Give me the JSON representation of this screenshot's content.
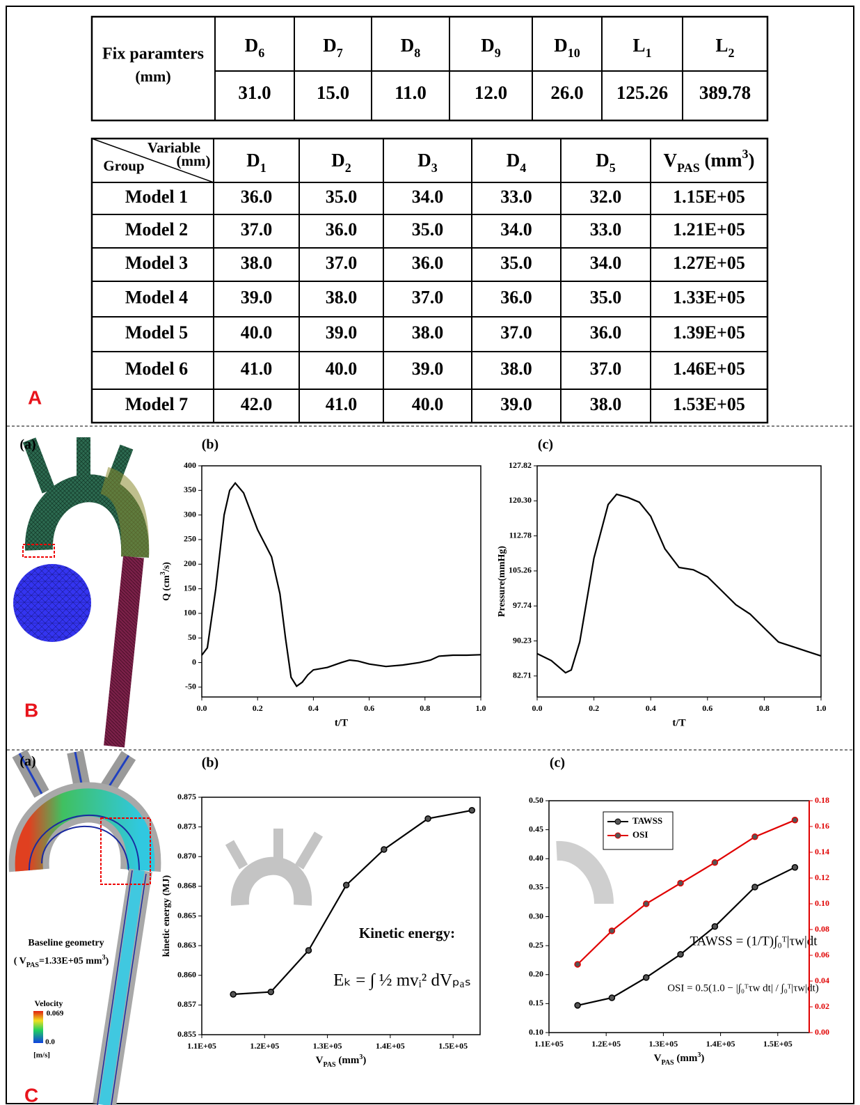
{
  "panel_labels": [
    "A",
    "B",
    "C"
  ],
  "fix_table": {
    "row_header": [
      "Fix paramters",
      "(mm)"
    ],
    "columns": [
      [
        {
          "text": "D"
        },
        {
          "text": "6",
          "sub": true
        }
      ],
      [
        {
          "text": "D"
        },
        {
          "text": "7",
          "sub": true
        }
      ],
      [
        {
          "text": "D"
        },
        {
          "text": "8",
          "sub": true
        }
      ],
      [
        {
          "text": "D"
        },
        {
          "text": "9",
          "sub": true
        }
      ],
      [
        {
          "text": "D"
        },
        {
          "text": "10",
          "sub": true
        }
      ],
      [
        {
          "text": "L"
        },
        {
          "text": "1",
          "sub": true
        }
      ],
      [
        {
          "text": "L"
        },
        {
          "text": "2",
          "sub": true
        }
      ]
    ],
    "values": [
      "31.0",
      "15.0",
      "11.0",
      "12.0",
      "26.0",
      "125.26",
      "389.78"
    ]
  },
  "variable_table": {
    "corner_top": "Variable",
    "corner_unit": "(mm)",
    "corner_bottom": "Group",
    "columns": [
      [
        {
          "text": "D"
        },
        {
          "text": "1",
          "sub": true
        }
      ],
      [
        {
          "text": "D"
        },
        {
          "text": "2",
          "sub": true
        }
      ],
      [
        {
          "text": "D"
        },
        {
          "text": "3",
          "sub": true
        }
      ],
      [
        {
          "text": "D"
        },
        {
          "text": "4",
          "sub": true
        }
      ],
      [
        {
          "text": "D"
        },
        {
          "text": "5",
          "sub": true
        }
      ],
      [
        {
          "text": "V"
        },
        {
          "text": "PAS",
          "sub": true
        },
        {
          "text": " (mm"
        },
        {
          "text": "3",
          "sup": true
        },
        {
          "text": ")"
        }
      ]
    ],
    "rows": [
      {
        "group": "Model 1",
        "values": [
          "36.0",
          "35.0",
          "34.0",
          "33.0",
          "32.0",
          "1.15E+05"
        ]
      },
      {
        "group": "Model 2",
        "values": [
          "37.0",
          "36.0",
          "35.0",
          "34.0",
          "33.0",
          "1.21E+05"
        ]
      },
      {
        "group": "Model 3",
        "values": [
          "38.0",
          "37.0",
          "36.0",
          "35.0",
          "34.0",
          "1.27E+05"
        ]
      },
      {
        "group": "Model 4",
        "values": [
          "39.0",
          "38.0",
          "37.0",
          "36.0",
          "35.0",
          "1.33E+05"
        ]
      },
      {
        "group": "Model 5",
        "values": [
          "40.0",
          "39.0",
          "38.0",
          "37.0",
          "36.0",
          "1.39E+05"
        ]
      },
      {
        "group": "Model 6",
        "values": [
          "41.0",
          "40.0",
          "39.0",
          "38.0",
          "37.0",
          "1.46E+05"
        ]
      },
      {
        "group": "Model 7",
        "values": [
          "42.0",
          "41.0",
          "40.0",
          "39.0",
          "38.0",
          "1.53E+05"
        ]
      }
    ]
  },
  "panel_B": {
    "sublabel": "(a)"
  },
  "panel_C": {
    "sublabel": "(a)",
    "baseline_label": "Baseline geometry",
    "baseline_volume": [
      {
        "text": "( V"
      },
      {
        "text": "PAS",
        "sub": true
      },
      {
        "text": "=1.33E+05 mm"
      },
      {
        "text": "3",
        "sup": true
      },
      {
        "text": ")"
      }
    ],
    "colorbar": {
      "title": "Velocity",
      "max": "0.069",
      "min": "0.0",
      "unit": "[m/s]"
    },
    "ke_title": "Kinetic energy:",
    "ke_formula": "Eₖ = ∫ ½ mvᵢ² dVₚₐₛ",
    "tawss_formula": "TAWSS = (1/T)∫₀ᵀ|τw|dt",
    "osi_formula": "OSI = 0.5(1.0 − |∫₀ᵀτw dt| / ∫₀ᵀ|τw|dt)"
  },
  "chart_data": [
    {
      "type": "line",
      "label": "(b)",
      "x_label": "t/T",
      "y_label": [
        {
          "text": "Q (cm"
        },
        {
          "text": "3",
          "sup": true
        },
        {
          "text": "/s)"
        }
      ],
      "x": [
        0,
        0.02,
        0.05,
        0.08,
        0.1,
        0.12,
        0.15,
        0.2,
        0.25,
        0.28,
        0.3,
        0.32,
        0.34,
        0.36,
        0.38,
        0.4,
        0.45,
        0.5,
        0.53,
        0.56,
        0.6,
        0.66,
        0.72,
        0.78,
        0.82,
        0.85,
        0.9,
        0.95,
        1.0
      ],
      "series": [
        {
          "color": "#000000",
          "values": [
            15,
            30,
            150,
            300,
            350,
            365,
            345,
            270,
            215,
            140,
            50,
            -30,
            -48,
            -40,
            -25,
            -15,
            -10,
            0,
            5,
            3,
            -3,
            -8,
            -5,
            0,
            5,
            13,
            15,
            15,
            16
          ]
        }
      ],
      "xlim": [
        0,
        1
      ],
      "xticks": [
        {
          "value": 0,
          "label": "0.0"
        },
        0.2,
        0.4,
        0.6,
        0.8,
        {
          "value": 1,
          "label": "1.0"
        }
      ],
      "ylim": [
        -70,
        400
      ],
      "yticks": [
        -50,
        0,
        50,
        100,
        150,
        200,
        250,
        300,
        350,
        400
      ],
      "markers": false
    },
    {
      "type": "line",
      "label": "(c)",
      "x_label": "t/T",
      "y_label": "Pressure(mmHg)",
      "x": [
        0,
        0.05,
        0.1,
        0.12,
        0.15,
        0.2,
        0.25,
        0.28,
        0.32,
        0.36,
        0.4,
        0.45,
        0.5,
        0.55,
        0.6,
        0.65,
        0.7,
        0.75,
        0.8,
        0.85,
        0.9,
        0.95,
        1.0
      ],
      "series": [
        {
          "color": "#000000",
          "values": [
            87.5,
            86,
            83.4,
            84,
            90,
            108,
            119.5,
            121.7,
            121,
            120,
            117,
            110,
            106,
            105.5,
            104,
            101,
            98,
            96,
            93,
            90,
            89,
            88,
            87
          ]
        }
      ],
      "xlim": [
        0,
        1
      ],
      "xticks": [
        {
          "value": 0,
          "label": "0.0"
        },
        0.2,
        0.4,
        0.6,
        0.8,
        {
          "value": 1,
          "label": "1.0"
        }
      ],
      "ylim": [
        78.2,
        127.82
      ],
      "yticks": [
        82.71,
        90.23,
        97.74,
        105.26,
        112.78,
        {
          "value": 120.3,
          "label": "120.30"
        },
        127.82
      ],
      "markers": false
    },
    {
      "type": "line",
      "label": "(b)",
      "x_label": [
        {
          "text": "V"
        },
        {
          "text": "PAS",
          "sub": true
        },
        {
          "text": " (mm"
        },
        {
          "text": "3",
          "sup": true
        },
        {
          "text": ")"
        }
      ],
      "y_label": "kinetic energy (MJ)",
      "x": [
        115000,
        121000,
        127000,
        133000,
        139000,
        146000,
        153000
      ],
      "series": [
        {
          "color": "#000000",
          "values": [
            0.8584,
            0.8586,
            0.8621,
            0.8676,
            0.8706,
            0.8732,
            0.8739
          ]
        }
      ],
      "xlim": [
        110000,
        154300
      ],
      "xticks": [
        {
          "value": 110000,
          "label": "1.1E+05"
        },
        {
          "value": 120000,
          "label": "1.2E+05"
        },
        {
          "value": 130000,
          "label": "1.3E+05"
        },
        {
          "value": 140000,
          "label": "1.4E+05"
        },
        {
          "value": 150000,
          "label": "1.5E+05"
        }
      ],
      "ylim": [
        0.855,
        0.875
      ],
      "yticks": [
        0.855,
        {
          "value": 0.8575,
          "label": "0.857"
        },
        {
          "value": 0.86,
          "label": "0.860"
        },
        {
          "value": 0.8625,
          "label": "0.863"
        },
        0.865,
        {
          "value": 0.8675,
          "label": "0.868"
        },
        {
          "value": 0.87,
          "label": "0.870"
        },
        {
          "value": 0.8725,
          "label": "0.873"
        },
        0.875
      ],
      "markers": true
    },
    {
      "type": "line",
      "label": "(c)",
      "x_label": [
        {
          "text": "V"
        },
        {
          "text": "PAS",
          "sub": true
        },
        {
          "text": " (mm"
        },
        {
          "text": "3",
          "sup": true
        },
        {
          "text": ")"
        }
      ],
      "x": [
        115000,
        121000,
        127000,
        133000,
        139000,
        146000,
        153000
      ],
      "series": [
        {
          "name": "TAWSS",
          "color": "#000000",
          "values": [
            0.147,
            0.16,
            0.195,
            0.235,
            0.283,
            0.351,
            0.385
          ]
        },
        {
          "name": "OSI",
          "color": "#e00000",
          "axis": "y2",
          "values": [
            0.053,
            0.079,
            0.1,
            0.116,
            0.132,
            0.152,
            0.165
          ]
        }
      ],
      "xlim": [
        110000,
        155500
      ],
      "xticks": [
        {
          "value": 110000,
          "label": "1.1E+05"
        },
        {
          "value": 120000,
          "label": "1.2E+05"
        },
        {
          "value": 130000,
          "label": "1.3E+05"
        },
        {
          "value": 140000,
          "label": "1.4E+05"
        },
        {
          "value": 150000,
          "label": "1.5E+05"
        }
      ],
      "ylim": [
        0.1,
        0.5
      ],
      "yticks": [
        {
          "value": 0.1,
          "label": "0.10"
        },
        0.15,
        {
          "value": 0.2,
          "label": "0.20"
        },
        0.25,
        {
          "value": 0.3,
          "label": "0.30"
        },
        0.35,
        {
          "value": 0.4,
          "label": "0.40"
        },
        0.45,
        {
          "value": 0.5,
          "label": "0.50"
        }
      ],
      "y2lim": [
        0,
        0.18
      ],
      "y2ticks": [
        {
          "value": 0,
          "label": "0.00"
        },
        0.02,
        0.04,
        0.06,
        0.08,
        {
          "value": 0.1,
          "label": "0.10"
        },
        0.12,
        0.14,
        0.16,
        0.18
      ],
      "markers": true,
      "legend": "upper left"
    }
  ]
}
